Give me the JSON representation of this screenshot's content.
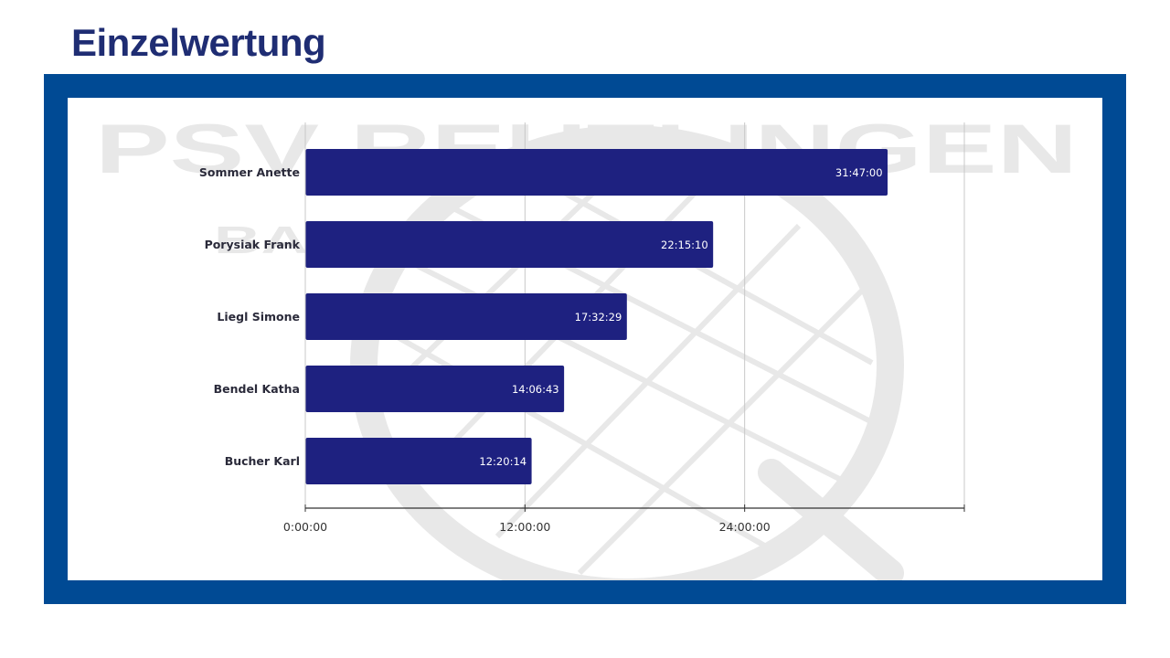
{
  "page": {
    "title": "Einzelwertung"
  },
  "colors": {
    "title": "#1f2d73",
    "frame": "#004a94",
    "bar": "#1e2180",
    "grid": "#c8c8c8",
    "axis": "#333333",
    "category_text": "#2a2a3a",
    "watermark": "#e8e8e8"
  },
  "watermark": {
    "main_text": "PSV REUTLINGEN",
    "sub_text": "BADMINTON",
    "icon": "badminton-racket-icon"
  },
  "chart_data": {
    "type": "bar",
    "orientation": "horizontal",
    "title": "",
    "xlabel": "",
    "ylabel": "",
    "categories": [
      "Sommer Anette",
      "Porysiak Frank",
      "Liegl Simone",
      "Bendel Katha",
      "Bucher Karl"
    ],
    "values": [
      "31:47:00",
      "22:15:10",
      "17:32:29",
      "14:06:43",
      "12:20:14"
    ],
    "value_unit": "hours:minutes:seconds",
    "xlim": [
      "0:00:00",
      "36:00:00"
    ],
    "x_ticks": [
      "0:00:00",
      "12:00:00",
      "24:00:00"
    ],
    "grid": true,
    "legend": "none",
    "data_labels": true
  }
}
